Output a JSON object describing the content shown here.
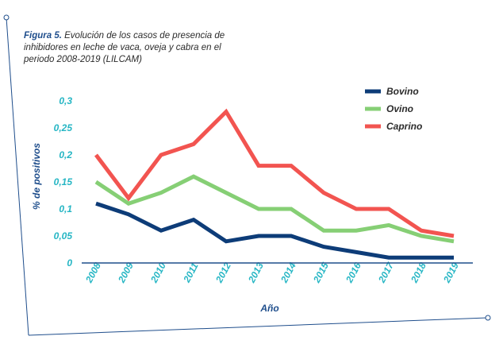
{
  "caption": {
    "figure_label": "Figura 5.",
    "text": " Evolución de los casos de presencia de inhibidores en leche de vaca, oveja y cabra en el periodo 2008-2019 (LILCAM)"
  },
  "chart_data": {
    "type": "line",
    "title": "",
    "xlabel": "Año",
    "ylabel": "% de positivos",
    "x": [
      "2008",
      "2009",
      "2010",
      "2011",
      "2012",
      "2013",
      "2014",
      "2015",
      "2016",
      "2017",
      "2018",
      "2019"
    ],
    "ylim": [
      0,
      0.3
    ],
    "yticks": [
      "0",
      "0,05",
      "0,1",
      "0,15",
      "0,2",
      "0,25",
      "0,3"
    ],
    "grid": false,
    "legend": "top-right",
    "series": [
      {
        "name": "Bovino",
        "color": "#0d3c78",
        "values": [
          0.11,
          0.09,
          0.06,
          0.08,
          0.04,
          0.05,
          0.05,
          0.03,
          0.02,
          0.01,
          0.01,
          0.01
        ]
      },
      {
        "name": "Ovino",
        "color": "#86cf75",
        "values": [
          0.15,
          0.11,
          0.13,
          0.16,
          0.13,
          0.1,
          0.1,
          0.06,
          0.06,
          0.07,
          0.05,
          0.04
        ]
      },
      {
        "name": "Caprino",
        "color": "#f25450",
        "values": [
          0.2,
          0.12,
          0.2,
          0.22,
          0.28,
          0.18,
          0.18,
          0.13,
          0.1,
          0.1,
          0.06,
          0.05
        ]
      }
    ],
    "tick_color": "#26b6c4",
    "axis_color": "#1f4e8c"
  }
}
